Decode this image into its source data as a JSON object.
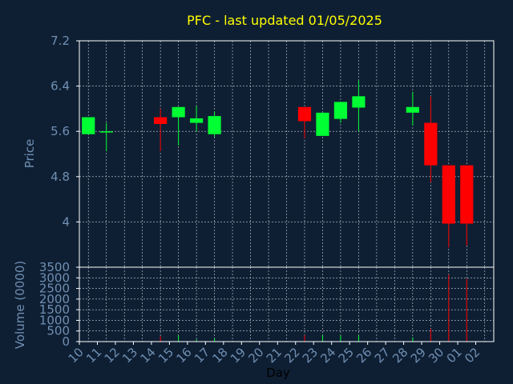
{
  "chart_data": {
    "type": "candlestick",
    "title": "PFC - last updated 01/05/2025",
    "xlabel": "Day",
    "ylabel": "Price",
    "volume_label": "Volume (0000)",
    "grid": true,
    "categories": [
      "10",
      "11",
      "12",
      "13",
      "14",
      "15",
      "16",
      "17",
      "18",
      "19",
      "20",
      "21",
      "22",
      "23",
      "24",
      "25",
      "26",
      "27",
      "28",
      "29",
      "30",
      "01",
      "02"
    ],
    "price_ylim": [
      3.2,
      7.2
    ],
    "price_ticks": [
      "7.2",
      "6.4",
      "5.6",
      "4.8",
      "4"
    ],
    "price_tick_values": [
      7.2,
      6.4,
      5.6,
      4.8,
      4.0
    ],
    "volume_ylim": [
      0,
      3500
    ],
    "volume_ticks": [
      "3500",
      "3000",
      "2500",
      "2000",
      "1500",
      "1000",
      "500",
      "0"
    ],
    "volume_tick_values": [
      3500,
      3000,
      2500,
      2000,
      1500,
      1000,
      500,
      0
    ],
    "candles": [
      {
        "day": "10",
        "open": 5.55,
        "close": 5.85,
        "high": 5.85,
        "low": 5.55,
        "volume": 0
      },
      {
        "day": "11",
        "open": 5.59,
        "close": 5.59,
        "high": 5.75,
        "low": 5.25,
        "volume": 0
      },
      {
        "day": "14",
        "open": 5.85,
        "close": 5.73,
        "high": 6.0,
        "low": 5.25,
        "volume": 250
      },
      {
        "day": "15",
        "open": 5.85,
        "close": 6.03,
        "high": 6.03,
        "low": 5.35,
        "volume": 300
      },
      {
        "day": "16",
        "open": 5.75,
        "close": 5.83,
        "high": 6.05,
        "low": 5.6,
        "volume": 100
      },
      {
        "day": "17",
        "open": 5.55,
        "close": 5.87,
        "high": 5.95,
        "low": 5.5,
        "volume": 150
      },
      {
        "day": "22",
        "open": 6.03,
        "close": 5.78,
        "high": 6.03,
        "low": 5.48,
        "volume": 300
      },
      {
        "day": "23",
        "open": 5.52,
        "close": 5.93,
        "high": 5.93,
        "low": 5.52,
        "volume": 300
      },
      {
        "day": "24",
        "open": 5.82,
        "close": 6.12,
        "high": 6.12,
        "low": 5.75,
        "volume": 300
      },
      {
        "day": "25",
        "open": 6.02,
        "close": 6.22,
        "high": 6.5,
        "low": 5.6,
        "volume": 300
      },
      {
        "day": "28",
        "open": 5.93,
        "close": 6.03,
        "high": 6.3,
        "low": 5.7,
        "volume": 200
      },
      {
        "day": "29",
        "open": 5.75,
        "close": 5.0,
        "high": 6.22,
        "low": 4.7,
        "volume": 600
      },
      {
        "day": "30",
        "open": 5.0,
        "close": 3.97,
        "high": 5.0,
        "low": 3.55,
        "volume": 3150
      },
      {
        "day": "01",
        "open": 5.0,
        "close": 3.97,
        "high": 5.0,
        "low": 3.58,
        "volume": 2950
      }
    ],
    "colors": {
      "background": "#0f1f33",
      "grid": "#c8d2dc",
      "axis_text": "#6f8fb3",
      "title": "#ffff00",
      "up": "#00ff33",
      "down": "#ff0000"
    }
  }
}
